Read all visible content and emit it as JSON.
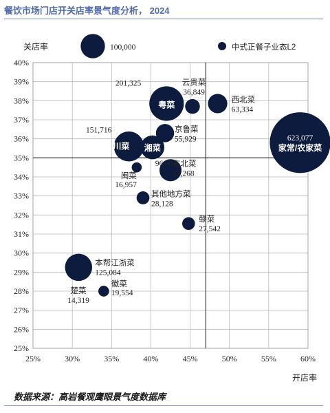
{
  "page": {
    "title": "餐饮市场门店开关店率景气度分析， 2024",
    "source": "数据来源：高岩餐观鹰眼景气度数据库"
  },
  "chart_data": {
    "type": "scatter",
    "xlabel": "开店率",
    "ylabel": "关店率",
    "xlim": [
      25,
      60
    ],
    "ylim": [
      25,
      40
    ],
    "xticks": [
      "25%",
      "30%",
      "35%",
      "40%",
      "45%",
      "50%",
      "55%",
      "60%"
    ],
    "yticks": [
      "25%",
      "26%",
      "27%",
      "28%",
      "29%",
      "30%",
      "31%",
      "32%",
      "33%",
      "34%",
      "35%",
      "36%",
      "37%",
      "38%",
      "39%",
      "40%"
    ],
    "reference_lines": {
      "x": 47,
      "y": 35
    },
    "size_legend": {
      "value": 100000,
      "label": "100,000"
    },
    "series_legend": "中式正餐子业态L2",
    "color": "#0d1b3e",
    "points": [
      {
        "name": "粤菜",
        "label": "201,325",
        "x": 42.0,
        "y": 37.85,
        "size": 201325
      },
      {
        "name": "云贵菜",
        "label": "36,849",
        "x": 45.3,
        "y": 37.7,
        "size": 36849
      },
      {
        "name": "西北菜",
        "label": "63,334",
        "x": 48.5,
        "y": 37.85,
        "size": 63334
      },
      {
        "name": "家常/农家菜",
        "label": "623,077",
        "x": 59.0,
        "y": 35.8,
        "size": 623077
      },
      {
        "name": "京鲁菜",
        "label": "55,929",
        "x": 41.8,
        "y": 36.3,
        "size": 55929
      },
      {
        "name": "川菜",
        "label": "151,716",
        "x": 37.2,
        "y": 35.6,
        "size": 151716
      },
      {
        "name": "湘菜",
        "label": "96,002",
        "x": 40.2,
        "y": 35.55,
        "size": 96002
      },
      {
        "name": "闽菜",
        "label": "16,957",
        "x": 38.2,
        "y": 34.5,
        "size": 16957
      },
      {
        "name": "东北菜",
        "label": "82,268",
        "x": 42.5,
        "y": 34.35,
        "size": 82268
      },
      {
        "name": "其他地方菜",
        "label": "28,128",
        "x": 39.0,
        "y": 32.9,
        "size": 28128
      },
      {
        "name": "赣菜",
        "label": "27,542",
        "x": 44.8,
        "y": 31.55,
        "size": 27542
      },
      {
        "name": "本帮江浙菜",
        "label": "125,084",
        "x": 30.8,
        "y": 29.25,
        "size": 125084
      },
      {
        "name": "徽菜",
        "label": "19,554",
        "x": 34.0,
        "y": 28.0,
        "size": 19554
      },
      {
        "name": "楚菜",
        "label": "14,319",
        "x": null,
        "y": null,
        "size": null
      }
    ]
  }
}
